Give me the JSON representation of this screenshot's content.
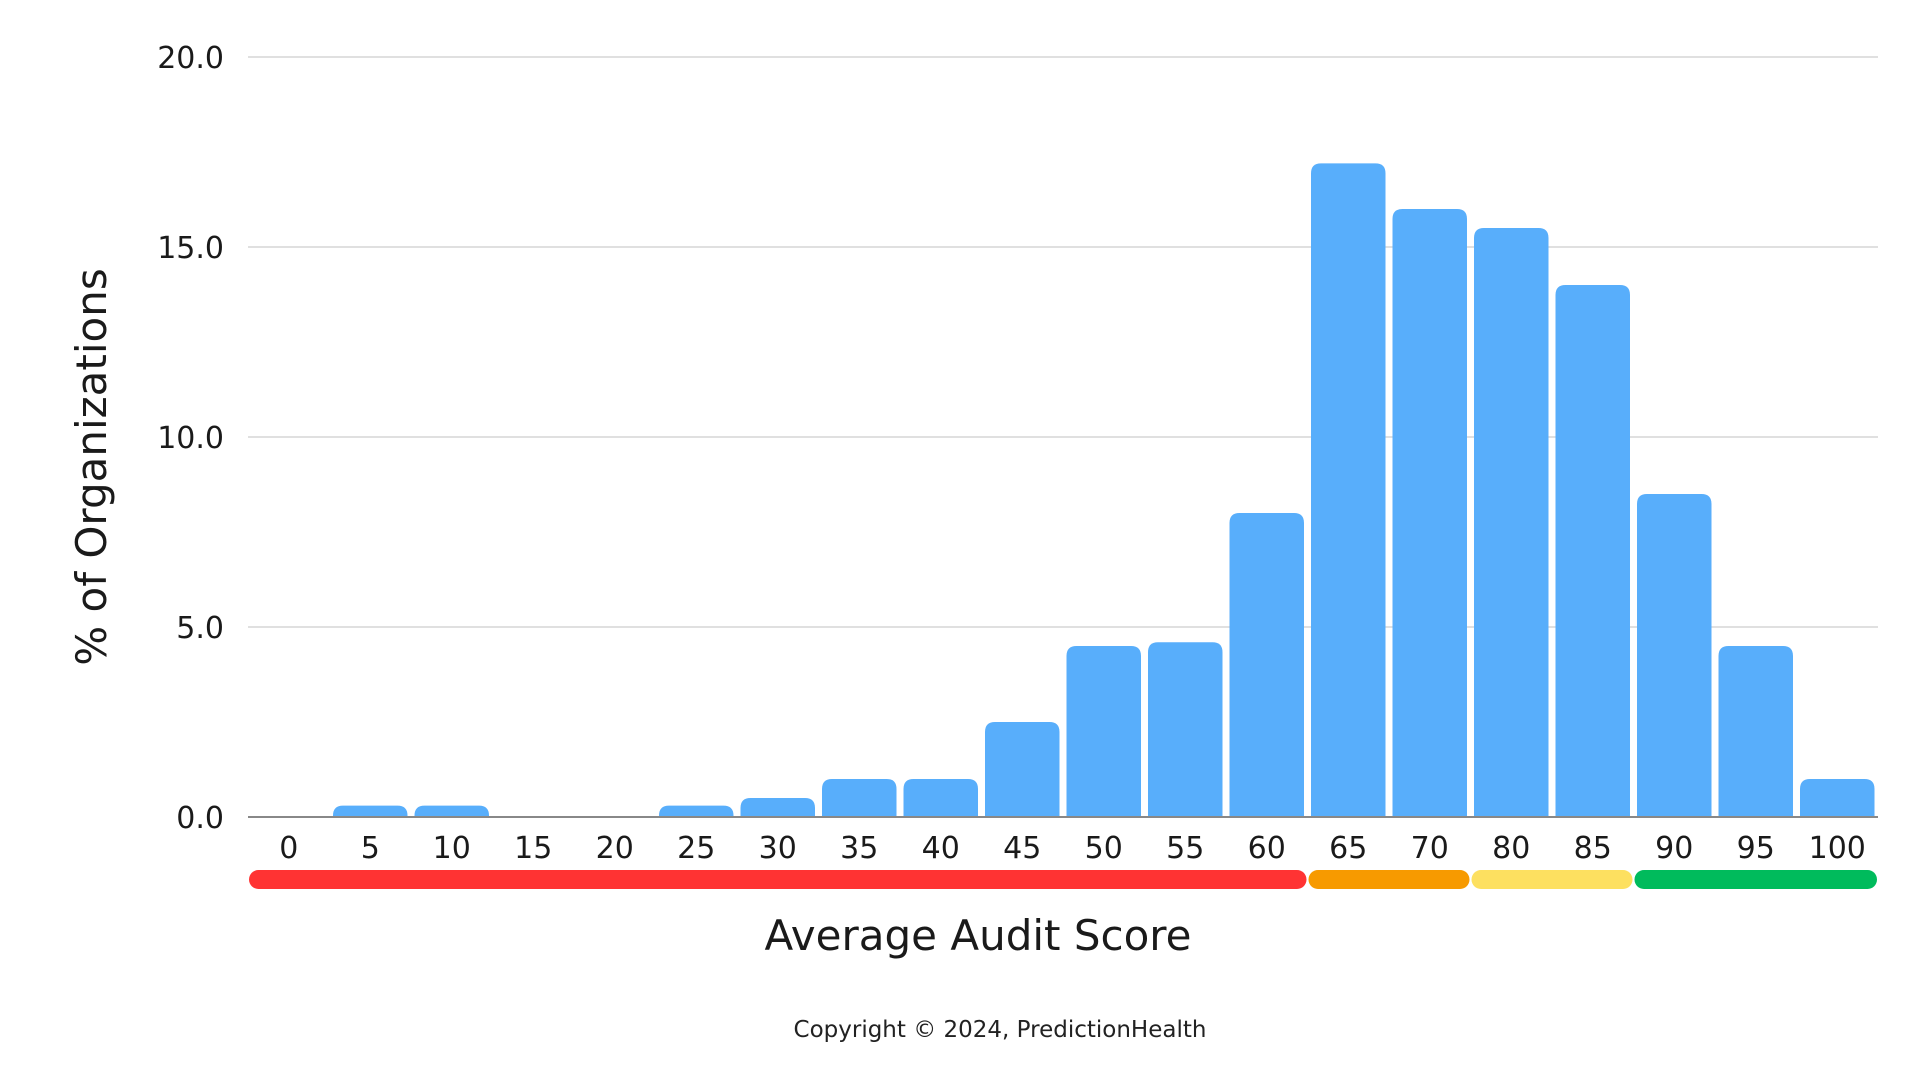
{
  "chart_data": {
    "type": "bar",
    "xlabel": "Average Audit Score",
    "ylabel": "% of Organizations",
    "ylim": [
      0,
      20
    ],
    "yticks": [
      "0.0",
      "5.0",
      "10.0",
      "15.0",
      "20.0"
    ],
    "grid": true,
    "categories": [
      "0",
      "5",
      "10",
      "15",
      "20",
      "25",
      "30",
      "35",
      "40",
      "45",
      "50",
      "55",
      "60",
      "65",
      "70",
      "80",
      "85",
      "90",
      "95",
      "100"
    ],
    "values": [
      0,
      0.3,
      0.3,
      0,
      0,
      0.3,
      0.5,
      1.0,
      1.0,
      2.5,
      4.5,
      4.6,
      8.0,
      17.2,
      16.0,
      15.5,
      14.0,
      8.5,
      4.5,
      1.0
    ],
    "bar_color": "#58aefb",
    "score_bands": [
      {
        "color": "#ff3333",
        "from_index": 0,
        "to_index": 12
      },
      {
        "color": "#f79a00",
        "from_index": 13,
        "to_index": 14
      },
      {
        "color": "#fde060",
        "from_index": 15,
        "to_index": 16
      },
      {
        "color": "#00bb5c",
        "from_index": 17,
        "to_index": 19
      }
    ]
  },
  "footer": {
    "copyright": "Copyright © 2024, PredictionHealth"
  }
}
